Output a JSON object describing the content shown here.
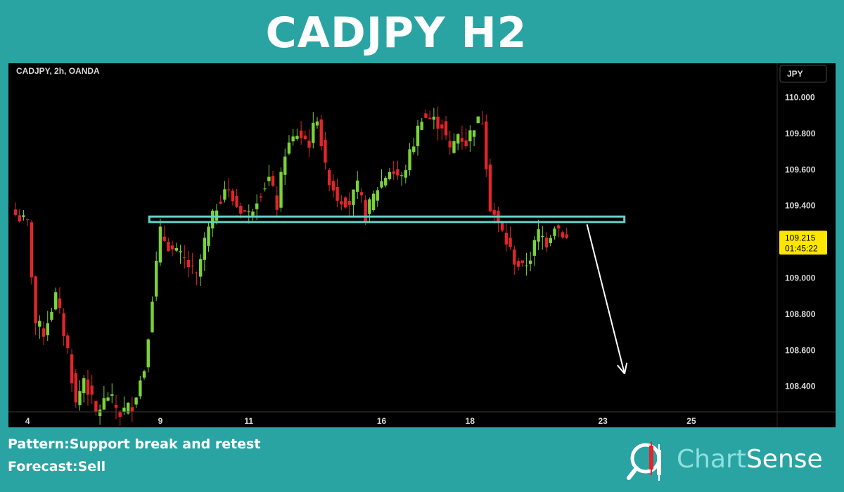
{
  "header": {
    "title": "CADJPY H2"
  },
  "chart": {
    "symbol_label": "CADJPY, 2h, OANDA",
    "currency": "JPY",
    "price_label": "109.215",
    "countdown_label": "01:45:22"
  },
  "chart_data": {
    "type": "candlestick",
    "title": "CADJPY H2",
    "xlabel": "",
    "ylabel": "",
    "ylim": [
      108.22,
      110.15
    ],
    "y_ticks": [
      "110.000",
      "109.800",
      "109.600",
      "109.400",
      "109.200",
      "109.000",
      "108.800",
      "108.600",
      "108.400"
    ],
    "x_ticks": [
      {
        "label": "4",
        "bar": 3
      },
      {
        "label": "9",
        "bar": 36
      },
      {
        "label": "11",
        "bar": 58
      },
      {
        "label": "16",
        "bar": 91
      },
      {
        "label": "18",
        "bar": 113
      },
      {
        "label": "23",
        "bar": 146
      },
      {
        "label": "25",
        "bar": 168
      }
    ],
    "close_anchors": [
      [
        0,
        109.35
      ],
      [
        3,
        109.3
      ],
      [
        5,
        108.75
      ],
      [
        7,
        108.7
      ],
      [
        10,
        108.9
      ],
      [
        13,
        108.6
      ],
      [
        15,
        108.3
      ],
      [
        17,
        108.45
      ],
      [
        20,
        108.25
      ],
      [
        23,
        108.35
      ],
      [
        26,
        108.25
      ],
      [
        29,
        108.3
      ],
      [
        32,
        108.5
      ],
      [
        34,
        108.9
      ],
      [
        36,
        109.25
      ],
      [
        39,
        109.15
      ],
      [
        42,
        109.1
      ],
      [
        45,
        109.0
      ],
      [
        47,
        109.2
      ],
      [
        50,
        109.4
      ],
      [
        52,
        109.5
      ],
      [
        55,
        109.4
      ],
      [
        58,
        109.35
      ],
      [
        60,
        109.45
      ],
      [
        63,
        109.55
      ],
      [
        65,
        109.4
      ],
      [
        67,
        109.7
      ],
      [
        70,
        109.8
      ],
      [
        73,
        109.75
      ],
      [
        75,
        109.9
      ],
      [
        77,
        109.6
      ],
      [
        80,
        109.45
      ],
      [
        83,
        109.42
      ],
      [
        85,
        109.5
      ],
      [
        87,
        109.35
      ],
      [
        90,
        109.5
      ],
      [
        93,
        109.6
      ],
      [
        96,
        109.55
      ],
      [
        99,
        109.75
      ],
      [
        101,
        109.9
      ],
      [
        103,
        109.88
      ],
      [
        106,
        109.85
      ],
      [
        108,
        109.7
      ],
      [
        110,
        109.8
      ],
      [
        112,
        109.75
      ],
      [
        114,
        109.85
      ],
      [
        116,
        109.88
      ],
      [
        118,
        109.4
      ],
      [
        120,
        109.3
      ],
      [
        122,
        109.2
      ],
      [
        124,
        109.1
      ],
      [
        126,
        109.05
      ],
      [
        128,
        109.12
      ],
      [
        130,
        109.25
      ],
      [
        132,
        109.2
      ],
      [
        134,
        109.3
      ],
      [
        136,
        109.25
      ],
      [
        137,
        109.215
      ]
    ],
    "support_zone": {
      "from_bar": 35,
      "to_bar": 151,
      "low": 109.31,
      "high": 109.34
    },
    "forecast_arrow": {
      "from_bar": 141,
      "from_price": 109.32,
      "to_bar": 150,
      "to_price": 108.47
    },
    "last_price": 109.215,
    "colors": {
      "up": "#7bd23a",
      "down": "#e0262a",
      "zone": "#5fd3c7",
      "background": "#000000",
      "price_tag": "#ffe600"
    }
  },
  "footer": {
    "pattern_label": "Pattern:",
    "pattern_value": "Support break and retest",
    "forecast_label": "Forecast:",
    "forecast_value": "Sell"
  },
  "logo": {
    "part1": "Chart",
    "part2": "Sense"
  }
}
